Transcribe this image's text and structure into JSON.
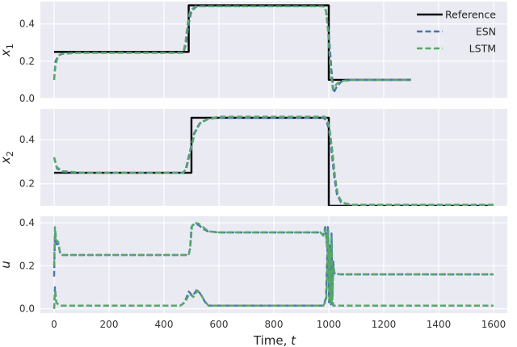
{
  "chart_data": {
    "type": "line",
    "x_label": "Time, t",
    "x_label_prefix": "Time, ",
    "x_label_var": "t",
    "x_ticks": [
      "0",
      "200",
      "400",
      "600",
      "800",
      "1000",
      "1200",
      "1400",
      "1600"
    ],
    "legend": {
      "placement": "top-right",
      "entries": [
        {
          "name": "Reference",
          "color": "#000000",
          "style": "solid"
        },
        {
          "name": "ESN",
          "color": "#4c72b0",
          "style": "dashed"
        },
        {
          "name": "LSTM",
          "color": "#55a868",
          "style": "dashed"
        }
      ]
    },
    "colors": {
      "reference": "#000000",
      "esn": "#4c72b0",
      "lstm": "#55a868",
      "panel_bg": "#eaeaf2",
      "grid": "#ffffff"
    },
    "grid": true,
    "panels": [
      {
        "ylabel_base": "x",
        "ylabel_sub": "1",
        "xlim": [
          -50,
          1650
        ],
        "ylim": [
          0,
          0.52
        ],
        "y_ticks": [
          "0.0",
          "0.2",
          "0.4"
        ],
        "reference": [
          [
            0,
            0.25
          ],
          [
            490,
            0.25
          ],
          [
            490,
            0.5
          ],
          [
            1000,
            0.5
          ],
          [
            1000,
            0.1
          ],
          [
            1300,
            0.1
          ]
        ],
        "esn": [
          [
            0,
            0.1
          ],
          [
            5,
            0.2
          ],
          [
            15,
            0.23
          ],
          [
            30,
            0.24
          ],
          [
            80,
            0.245
          ],
          [
            470,
            0.245
          ],
          [
            480,
            0.29
          ],
          [
            490,
            0.4
          ],
          [
            500,
            0.47
          ],
          [
            520,
            0.495
          ],
          [
            980,
            0.495
          ],
          [
            990,
            0.47
          ],
          [
            1000,
            0.35
          ],
          [
            1010,
            0.15
          ],
          [
            1018,
            0.03
          ],
          [
            1028,
            0.06
          ],
          [
            1045,
            0.09
          ],
          [
            1080,
            0.1
          ],
          [
            1300,
            0.1
          ]
        ],
        "lstm": [
          [
            0,
            0.1
          ],
          [
            5,
            0.18
          ],
          [
            15,
            0.23
          ],
          [
            30,
            0.24
          ],
          [
            80,
            0.245
          ],
          [
            470,
            0.245
          ],
          [
            478,
            0.3
          ],
          [
            486,
            0.4
          ],
          [
            495,
            0.47
          ],
          [
            515,
            0.495
          ],
          [
            980,
            0.495
          ],
          [
            990,
            0.47
          ],
          [
            998,
            0.35
          ],
          [
            1006,
            0.15
          ],
          [
            1015,
            0.05
          ],
          [
            1030,
            0.08
          ],
          [
            1050,
            0.095
          ],
          [
            1080,
            0.1
          ],
          [
            1300,
            0.1
          ]
        ]
      },
      {
        "ylabel_base": "x",
        "ylabel_sub": "2",
        "xlim": [
          -50,
          1650
        ],
        "ylim": [
          0.1,
          0.54
        ],
        "y_ticks": [
          "0.2",
          "0.4"
        ],
        "reference": [
          [
            0,
            0.25
          ],
          [
            500,
            0.25
          ],
          [
            500,
            0.5
          ],
          [
            1000,
            0.5
          ],
          [
            1000,
            0.1
          ],
          [
            1600,
            0.1
          ]
        ],
        "esn": [
          [
            0,
            0.32
          ],
          [
            10,
            0.27
          ],
          [
            30,
            0.255
          ],
          [
            100,
            0.25
          ],
          [
            470,
            0.25
          ],
          [
            480,
            0.27
          ],
          [
            495,
            0.35
          ],
          [
            510,
            0.43
          ],
          [
            530,
            0.475
          ],
          [
            560,
            0.495
          ],
          [
            600,
            0.5
          ],
          [
            980,
            0.5
          ],
          [
            990,
            0.49
          ],
          [
            1000,
            0.45
          ],
          [
            1010,
            0.35
          ],
          [
            1020,
            0.23
          ],
          [
            1030,
            0.15
          ],
          [
            1045,
            0.115
          ],
          [
            1080,
            0.105
          ],
          [
            1600,
            0.105
          ]
        ],
        "lstm": [
          [
            0,
            0.32
          ],
          [
            10,
            0.275
          ],
          [
            30,
            0.258
          ],
          [
            100,
            0.25
          ],
          [
            470,
            0.25
          ],
          [
            482,
            0.27
          ],
          [
            497,
            0.35
          ],
          [
            512,
            0.43
          ],
          [
            532,
            0.475
          ],
          [
            562,
            0.495
          ],
          [
            600,
            0.505
          ],
          [
            985,
            0.505
          ],
          [
            995,
            0.49
          ],
          [
            1003,
            0.45
          ],
          [
            1013,
            0.35
          ],
          [
            1023,
            0.23
          ],
          [
            1033,
            0.15
          ],
          [
            1048,
            0.115
          ],
          [
            1080,
            0.105
          ],
          [
            1600,
            0.105
          ]
        ]
      },
      {
        "ylabel_base": "u",
        "ylabel_sub": "",
        "xlim": [
          -50,
          1650
        ],
        "ylim": [
          -0.02,
          0.43
        ],
        "y_ticks": [
          "0.0",
          "0.2",
          "0.4"
        ],
        "esn_u_high": [
          [
            0,
            0.15
          ],
          [
            3,
            0.35
          ],
          [
            8,
            0.3
          ],
          [
            15,
            0.3
          ],
          [
            22,
            0.26
          ],
          [
            30,
            0.25
          ],
          [
            490,
            0.25
          ],
          [
            495,
            0.28
          ],
          [
            500,
            0.38
          ],
          [
            510,
            0.395
          ],
          [
            525,
            0.39
          ],
          [
            545,
            0.37
          ],
          [
            560,
            0.36
          ],
          [
            600,
            0.355
          ],
          [
            970,
            0.355
          ],
          [
            980,
            0.34
          ],
          [
            987,
            0.38
          ],
          [
            993,
            0.3
          ],
          [
            997,
            0.38
          ],
          [
            1001,
            0.1
          ],
          [
            1004,
            0.3
          ],
          [
            1007,
            0.02
          ],
          [
            1010,
            0.35
          ],
          [
            1013,
            0.05
          ],
          [
            1016,
            0.22
          ],
          [
            1020,
            0.165
          ],
          [
            1040,
            0.16
          ],
          [
            1600,
            0.16
          ]
        ],
        "esn_u_low": [
          [
            0,
            0.0
          ],
          [
            3,
            0.1
          ],
          [
            8,
            0.03
          ],
          [
            15,
            0.02
          ],
          [
            25,
            0.015
          ],
          [
            460,
            0.015
          ],
          [
            475,
            0.03
          ],
          [
            490,
            0.08
          ],
          [
            505,
            0.06
          ],
          [
            520,
            0.09
          ],
          [
            535,
            0.065
          ],
          [
            550,
            0.03
          ],
          [
            560,
            0.015
          ],
          [
            980,
            0.015
          ],
          [
            990,
            0.05
          ],
          [
            997,
            0.37
          ],
          [
            1001,
            0.03
          ],
          [
            1004,
            0.2
          ],
          [
            1008,
            0.02
          ],
          [
            1012,
            0.06
          ],
          [
            1016,
            0.015
          ],
          [
            1600,
            0.015
          ]
        ],
        "lstm_u_high": [
          [
            0,
            0.2
          ],
          [
            3,
            0.38
          ],
          [
            8,
            0.32
          ],
          [
            15,
            0.31
          ],
          [
            22,
            0.26
          ],
          [
            30,
            0.25
          ],
          [
            490,
            0.25
          ],
          [
            497,
            0.3
          ],
          [
            502,
            0.385
          ],
          [
            512,
            0.4
          ],
          [
            527,
            0.395
          ],
          [
            547,
            0.375
          ],
          [
            562,
            0.36
          ],
          [
            600,
            0.355
          ],
          [
            970,
            0.355
          ],
          [
            980,
            0.34
          ],
          [
            988,
            0.37
          ],
          [
            994,
            0.28
          ],
          [
            998,
            0.37
          ],
          [
            1002,
            0.12
          ],
          [
            1005,
            0.28
          ],
          [
            1008,
            0.03
          ],
          [
            1011,
            0.33
          ],
          [
            1014,
            0.06
          ],
          [
            1017,
            0.2
          ],
          [
            1021,
            0.165
          ],
          [
            1040,
            0.16
          ],
          [
            1600,
            0.16
          ]
        ],
        "lstm_u_low": [
          [
            0,
            0.0
          ],
          [
            3,
            0.08
          ],
          [
            8,
            0.03
          ],
          [
            15,
            0.02
          ],
          [
            25,
            0.015
          ],
          [
            460,
            0.015
          ],
          [
            477,
            0.03
          ],
          [
            492,
            0.07
          ],
          [
            507,
            0.055
          ],
          [
            522,
            0.085
          ],
          [
            537,
            0.06
          ],
          [
            552,
            0.03
          ],
          [
            562,
            0.015
          ],
          [
            980,
            0.015
          ],
          [
            991,
            0.04
          ],
          [
            998,
            0.35
          ],
          [
            1002,
            0.03
          ],
          [
            1005,
            0.18
          ],
          [
            1009,
            0.02
          ],
          [
            1013,
            0.05
          ],
          [
            1017,
            0.015
          ],
          [
            1600,
            0.015
          ]
        ]
      }
    ]
  }
}
